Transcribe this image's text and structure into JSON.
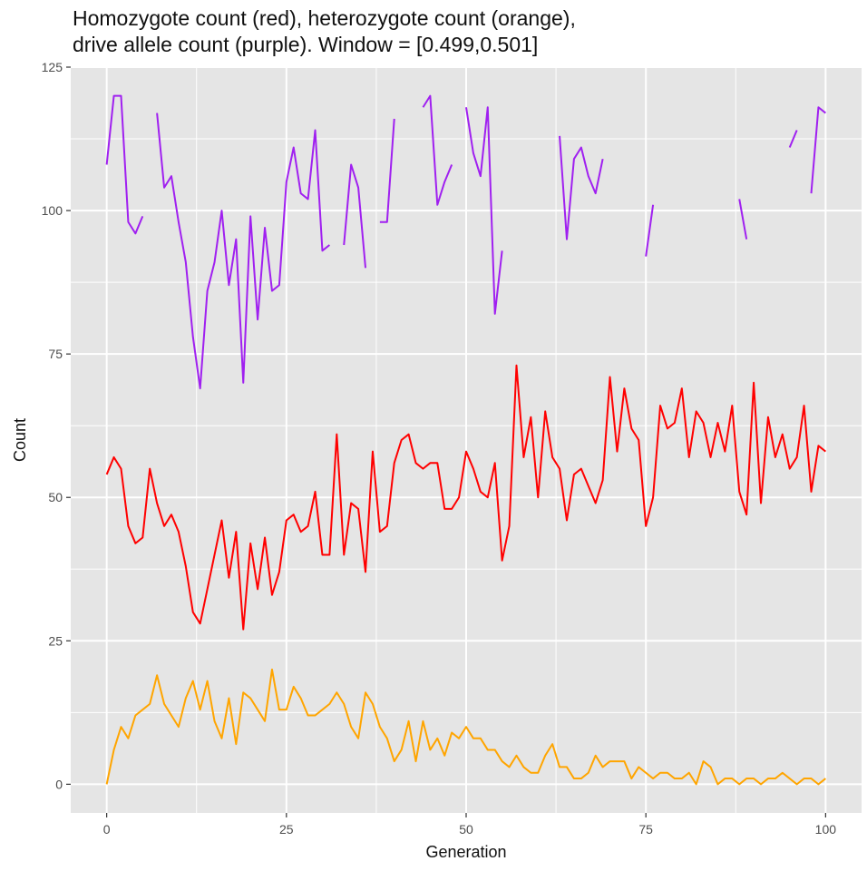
{
  "chart_data": {
    "type": "line",
    "title_lines": [
      "Homozygote count (red), heterozygote count (orange),",
      "drive allele count (purple). Window = [0.499,0.501]"
    ],
    "xlabel": "Generation",
    "ylabel": "Count",
    "xlim": [
      -5,
      105
    ],
    "ylim": [
      -5,
      125
    ],
    "x_ticks": [
      0,
      25,
      50,
      75,
      100
    ],
    "y_ticks": [
      0,
      25,
      50,
      75,
      100,
      125
    ],
    "grid": true,
    "legend": "none",
    "colors": {
      "panel": "#e5e5e5",
      "grid_major": "#ffffff",
      "homozygote": "#ff0000",
      "heterozygote": "#ffa500",
      "drive": "#a020f0"
    },
    "series": [
      {
        "color_key": "drive",
        "values": [
          108,
          120,
          120,
          98,
          96,
          99,
          null,
          117,
          104,
          106,
          98,
          91,
          78,
          69,
          86,
          91,
          100,
          87,
          95,
          70,
          99,
          81,
          97,
          86,
          87,
          105,
          111,
          103,
          102,
          114,
          93,
          94,
          null,
          94,
          108,
          104,
          90,
          null,
          98,
          98,
          116,
          null,
          null,
          null,
          118,
          120,
          101,
          105,
          108,
          null,
          118,
          110,
          106,
          118,
          82,
          93,
          null,
          null,
          null,
          null,
          null,
          null,
          null,
          113,
          95,
          109,
          111,
          106,
          103,
          109,
          null,
          null,
          null,
          null,
          null,
          92,
          101,
          null,
          null,
          null,
          null,
          null,
          null,
          null,
          null,
          null,
          null,
          null,
          102,
          95,
          null,
          null,
          null,
          null,
          null,
          111,
          114,
          null,
          103,
          118,
          117
        ]
      },
      {
        "color_key": "homozygote",
        "values": [
          54,
          57,
          55,
          45,
          42,
          43,
          55,
          49,
          45,
          47,
          44,
          38,
          30,
          28,
          34,
          40,
          46,
          36,
          44,
          27,
          42,
          34,
          43,
          33,
          37,
          46,
          47,
          44,
          45,
          51,
          40,
          40,
          61,
          40,
          49,
          48,
          37,
          58,
          44,
          45,
          56,
          60,
          61,
          56,
          55,
          56,
          56,
          48,
          48,
          50,
          58,
          55,
          51,
          50,
          56,
          39,
          45,
          73,
          57,
          64,
          50,
          65,
          57,
          55,
          46,
          54,
          55,
          52,
          49,
          53,
          71,
          58,
          69,
          62,
          60,
          45,
          50,
          66,
          62,
          63,
          69,
          57,
          65,
          63,
          57,
          63,
          58,
          66,
          51,
          47,
          70,
          49,
          64,
          57,
          61,
          55,
          57,
          66,
          51,
          59,
          58
        ]
      },
      {
        "color_key": "heterozygote",
        "values": [
          0,
          6,
          10,
          8,
          12,
          13,
          14,
          19,
          14,
          12,
          10,
          15,
          18,
          13,
          18,
          11,
          8,
          15,
          7,
          16,
          15,
          13,
          11,
          20,
          13,
          13,
          17,
          15,
          12,
          12,
          13,
          14,
          16,
          14,
          10,
          8,
          16,
          14,
          10,
          8,
          4,
          6,
          11,
          4,
          11,
          6,
          8,
          5,
          9,
          8,
          10,
          8,
          8,
          6,
          6,
          4,
          3,
          5,
          3,
          2,
          2,
          5,
          7,
          3,
          3,
          1,
          1,
          2,
          5,
          3,
          4,
          4,
          4,
          1,
          3,
          2,
          1,
          2,
          2,
          1,
          1,
          2,
          0,
          4,
          3,
          0,
          1,
          1,
          0,
          1,
          1,
          0,
          1,
          1,
          2,
          1,
          0,
          1,
          1,
          0,
          1
        ]
      }
    ]
  }
}
